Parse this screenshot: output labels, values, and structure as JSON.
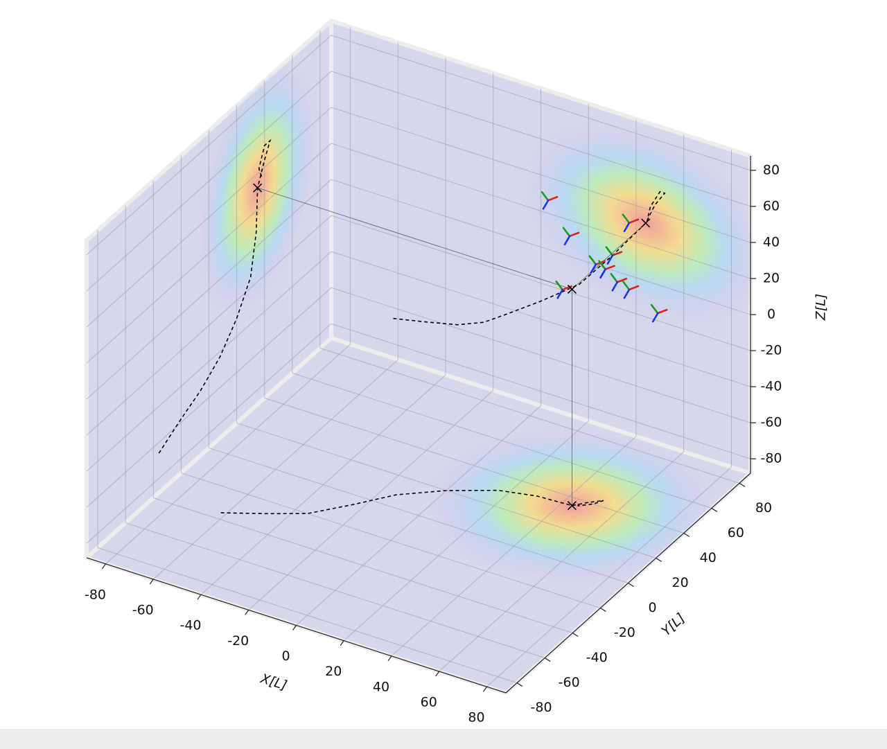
{
  "chart_data": {
    "type": "trajectory3d",
    "xlabel": "X[L]",
    "ylabel": "Y[L]",
    "zlabel": "Z[L]",
    "xlim": [
      -88,
      88
    ],
    "ylim": [
      -88,
      88
    ],
    "zlim": [
      -88,
      88
    ],
    "xticks": [
      -80,
      -60,
      -40,
      -20,
      0,
      20,
      40,
      60,
      80
    ],
    "yticks": [
      -80,
      -60,
      -40,
      -20,
      0,
      20,
      40,
      60,
      80
    ],
    "zticks": [
      -80,
      -60,
      -40,
      -20,
      0,
      20,
      40,
      60,
      80
    ],
    "grid": true,
    "projections": true,
    "trajectory": {
      "x": [
        -62,
        -48,
        -35,
        -24,
        -14,
        0,
        16,
        30,
        44,
        48,
        52,
        50,
        46,
        45
      ],
      "y": [
        -36,
        -28,
        -20,
        -6,
        8,
        20,
        30,
        34,
        35,
        40,
        44,
        40,
        36,
        38
      ],
      "z": [
        -66,
        -62,
        -58,
        -52,
        -43,
        -30,
        -14,
        8,
        32,
        44,
        52,
        52,
        42,
        36
      ]
    },
    "marker": {
      "x": 44,
      "y": 35,
      "z": 32
    },
    "frames": {
      "x": [
        34,
        43,
        54,
        61,
        58,
        63,
        68,
        40,
        80,
        68
      ],
      "y": [
        35,
        35,
        35,
        35,
        35,
        35,
        35,
        35,
        35,
        35
      ],
      "z": [
        77,
        61,
        50,
        58,
        49,
        44,
        42,
        30,
        34,
        79
      ]
    }
  }
}
